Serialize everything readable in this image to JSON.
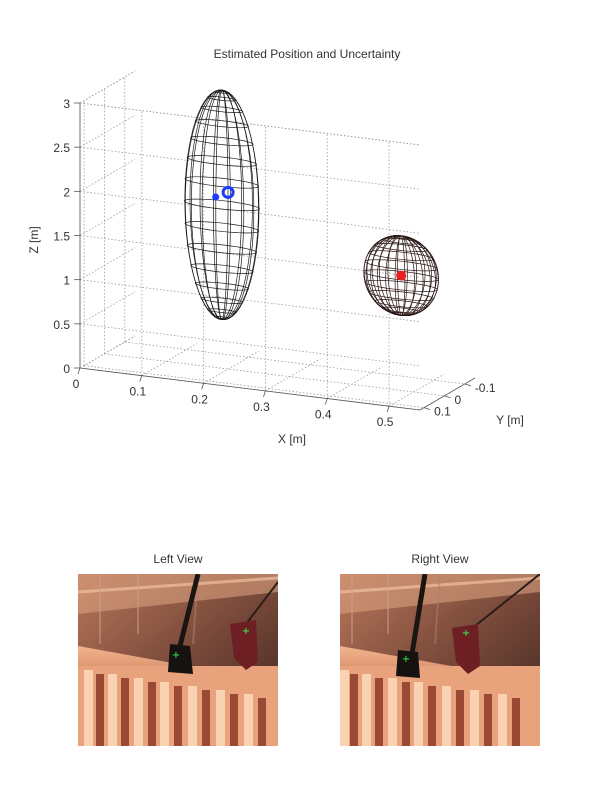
{
  "chart_data": [
    {
      "type": "scatter3d",
      "title": "Estimated Position and Uncertainty",
      "xlabel": "X [m]",
      "ylabel": "Y [m]",
      "zlabel": "Z [m]",
      "xlim": [
        0,
        0.55
      ],
      "ylim": [
        -0.15,
        0.12
      ],
      "zlim": [
        0,
        3
      ],
      "x_ticks": [
        "0",
        "0.1",
        "0.2",
        "0.3",
        "0.4",
        "0.5"
      ],
      "y_ticks": [
        "-0.1",
        "0",
        "0.1"
      ],
      "z_ticks": [
        "0",
        "0.5",
        "1",
        "1.5",
        "2",
        "2.5",
        "3"
      ],
      "grid": true,
      "series": [
        {
          "color": "#1e3cff",
          "points": [
            {
              "x": 0.2,
              "y": 0.0,
              "z": 2.0
            },
            {
              "x": 0.18,
              "y": 0.0,
              "z": 1.93
            }
          ],
          "ellipsoid": {
            "center": [
              0.19,
              0.0,
              1.85
            ],
            "radii": [
              0.06,
              0.03,
              1.3
            ],
            "color": "#1a1a1a"
          }
        },
        {
          "color": "#e82020",
          "points": [
            {
              "x": 0.48,
              "y": 0.0,
              "z": 1.3
            }
          ],
          "ellipsoid": {
            "center": [
              0.48,
              0.0,
              1.3
            ],
            "radii": [
              0.06,
              0.03,
              0.45
            ],
            "color": "#2a1515"
          }
        }
      ]
    }
  ],
  "views": {
    "left_title": "Left View",
    "right_title": "Right View"
  }
}
